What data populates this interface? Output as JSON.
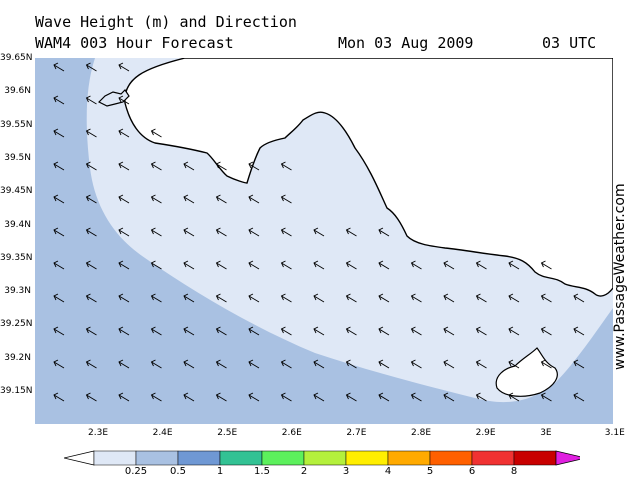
{
  "header": {
    "title": "Wave Height (m) and Direction",
    "model": "WAM4 003 Hour Forecast",
    "date": "Mon 03 Aug 2009",
    "time": "03 UTC"
  },
  "watermark": "www.PassageWeather.com",
  "lat_labels": [
    "39.65N",
    "39.6N",
    "39.55N",
    "39.5N",
    "39.45N",
    "39.4N",
    "39.35N",
    "39.3N",
    "39.25N",
    "39.2N",
    "39.15N"
  ],
  "lon_labels": [
    "2.3E",
    "2.4E",
    "2.5E",
    "2.6E",
    "2.7E",
    "2.8E",
    "2.9E",
    "3E",
    "3.1E"
  ],
  "legend": {
    "labels": [
      "0.25",
      "0.5",
      "1",
      "1.5",
      "2",
      "3",
      "4",
      "5",
      "6",
      "8"
    ],
    "colors": [
      "#ffffff",
      "#dfe8f6",
      "#a9c1e2",
      "#6f98d4",
      "#33c294",
      "#5cf05c",
      "#b4f03c",
      "#ffee00",
      "#ffaa00",
      "#ff6000",
      "#f03232",
      "#c80000",
      "#e020e0"
    ]
  },
  "colors": {
    "land": "#ffffff",
    "deep": "#a9c1e2",
    "shallow": "#dfe8f6",
    "coast": "#000000"
  }
}
